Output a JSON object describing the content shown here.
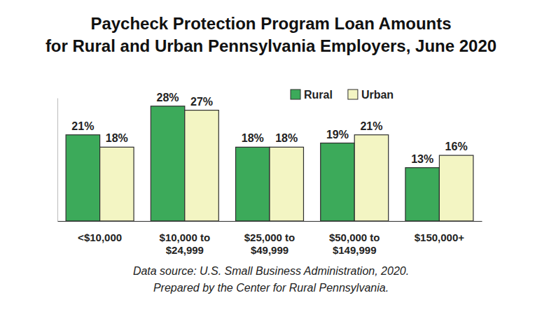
{
  "chart_data": {
    "type": "bar",
    "title": [
      "Paycheck Protection Program Loan Amounts",
      "for Rural and Urban Pennsylvania Employers, June 2020"
    ],
    "categories": [
      "<$10,000",
      "$10,000 to $24,999",
      "$25,000 to $49,999",
      "$50,000 to $149,999",
      "$150,000+"
    ],
    "series": [
      {
        "name": "Rural",
        "color": "#3caa5a",
        "values": [
          21,
          28,
          18,
          19,
          13
        ],
        "value_labels": [
          "21%",
          "28%",
          "18%",
          "19%",
          "13%"
        ]
      },
      {
        "name": "Urban",
        "color": "#f3f5c3",
        "values": [
          18,
          27,
          18,
          21,
          16
        ],
        "value_labels": [
          "18%",
          "27%",
          "18%",
          "21%",
          "16%"
        ]
      }
    ],
    "ylim": [
      0,
      30
    ],
    "data_labels": true,
    "tick_labels": "x",
    "legend": "top-right",
    "annotations": [
      "Data source: U.S. Small Business Administration, 2020.",
      "Prepared by the Center for Rural Pennsylvania."
    ]
  }
}
